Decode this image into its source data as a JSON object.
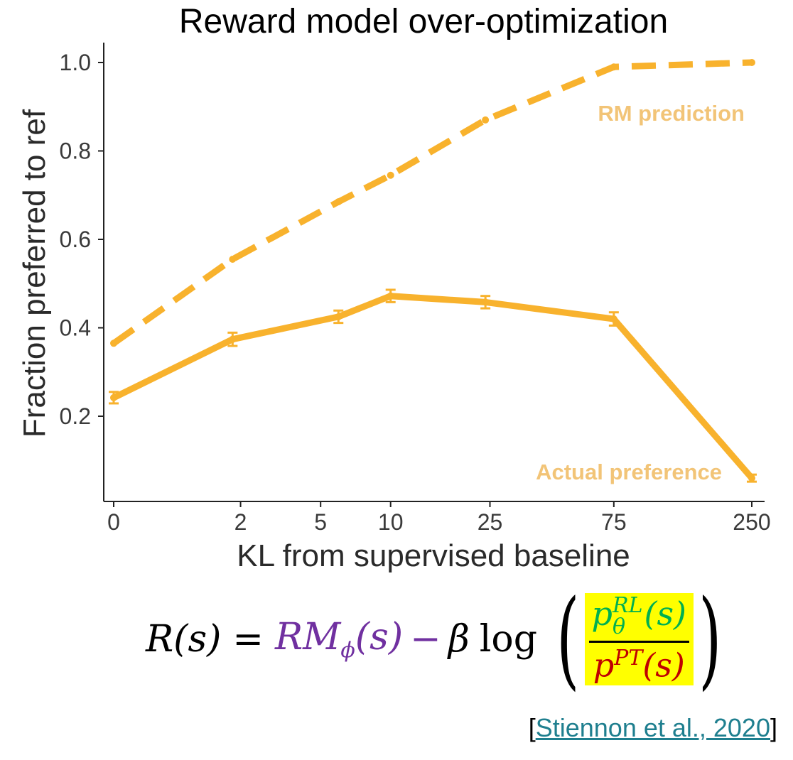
{
  "chart_data": {
    "type": "line",
    "title": "Reward model over-optimization",
    "xlabel": "KL from supervised baseline",
    "ylabel": "Fraction preferred to ref",
    "x_scale": "log-like (x+1)",
    "xticks": [
      0,
      2,
      5,
      10,
      25,
      75,
      250
    ],
    "yticks": [
      0.2,
      0.4,
      0.6,
      0.8,
      1.0
    ],
    "ytick_labels": [
      "0.2",
      "0.4",
      "0.6",
      "0.8",
      "1.0"
    ],
    "ylim": [
      0.05,
      1.05
    ],
    "grid": false,
    "color": "#f8b22d",
    "series": [
      {
        "name": "RM prediction",
        "style": "dashed",
        "x": [
          0,
          1.8,
          6,
          10,
          24,
          75,
          250
        ],
        "y": [
          0.365,
          0.555,
          0.685,
          0.745,
          0.87,
          0.99,
          1.0
        ]
      },
      {
        "name": "Actual preference",
        "style": "solid",
        "x": [
          0,
          1.8,
          6,
          10,
          24,
          75,
          250
        ],
        "y": [
          0.242,
          0.374,
          0.425,
          0.472,
          0.458,
          0.42,
          0.06
        ],
        "error": [
          0.013,
          0.015,
          0.014,
          0.014,
          0.014,
          0.015,
          0.008
        ]
      }
    ]
  },
  "formula": {
    "lhs": "R(s)",
    "equals": "=",
    "rm": "RM",
    "rm_sub": "ϕ",
    "rm_arg": "(s)",
    "minus": "−",
    "beta": "β",
    "log": "log",
    "num_base": "p",
    "num_sup": "RL",
    "num_sub": "θ",
    "num_arg": "(s)",
    "den_base": "p",
    "den_sup": "PT",
    "den_arg": "(s)",
    "lparen": "(",
    "rparen": ")"
  },
  "citation": {
    "open": "[",
    "link": "Stiennon et al., 2020",
    "close": "]"
  }
}
